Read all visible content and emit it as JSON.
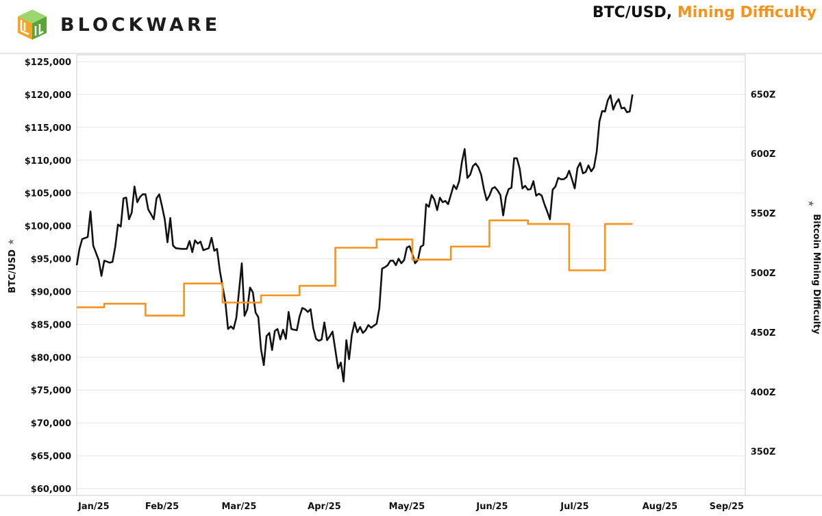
{
  "brand": {
    "name": "BLOCKWARE",
    "logo_icon": "blockware-cube-logo-icon"
  },
  "title_parts": [
    "BTC/USD, ",
    "Mining Difficulty"
  ],
  "colors": {
    "btc": "#111111",
    "difficulty": "#f7931a",
    "grid": "#e6e6e6"
  },
  "chart_data": {
    "type": "line",
    "x_ticks": [
      "Jan/25",
      "Feb/25",
      "Mar/25",
      "Apr/25",
      "May/25",
      "Jun/25",
      "Jul/25",
      "Aug/25",
      "Sep/25"
    ],
    "xlim": [
      "2025-01-01",
      "2025-09-01"
    ],
    "y_left": {
      "label": "BTC/USD",
      "ticks": [
        "$125,000",
        "$120,000",
        "$115,000",
        "$110,000",
        "$105,000",
        "$100,000",
        "$95,000",
        "$90,000",
        "$85,000",
        "$80,000",
        "$75,000",
        "$70,000",
        "$65,000",
        "$60,000"
      ],
      "ylim": [
        60000,
        125000
      ]
    },
    "y_right": {
      "label": "Bitcoin Mining Difficulty",
      "ticks": [
        "650Z",
        "600Z",
        "550Z",
        "500Z",
        "450Z",
        "400Z",
        "350Z"
      ],
      "ylim": [
        313,
        683
      ]
    },
    "grid": true,
    "series": [
      {
        "name": "BTC/USD",
        "axis": "left",
        "points": [
          [
            "2025-01-01",
            94000
          ],
          [
            "2025-01-02",
            96500
          ],
          [
            "2025-01-03",
            98000
          ],
          [
            "2025-01-05",
            98300
          ],
          [
            "2025-01-06",
            102200
          ],
          [
            "2025-01-07",
            97000
          ],
          [
            "2025-01-09",
            94800
          ],
          [
            "2025-01-10",
            92400
          ],
          [
            "2025-01-11",
            94700
          ],
          [
            "2025-01-13",
            94400
          ],
          [
            "2025-01-14",
            94500
          ],
          [
            "2025-01-15",
            96800
          ],
          [
            "2025-01-16",
            100200
          ],
          [
            "2025-01-17",
            99900
          ],
          [
            "2025-01-18",
            104200
          ],
          [
            "2025-01-19",
            104300
          ],
          [
            "2025-01-20",
            101000
          ],
          [
            "2025-01-21",
            102000
          ],
          [
            "2025-01-22",
            106000
          ],
          [
            "2025-01-23",
            103600
          ],
          [
            "2025-01-24",
            104400
          ],
          [
            "2025-01-25",
            104800
          ],
          [
            "2025-01-26",
            104800
          ],
          [
            "2025-01-27",
            102500
          ],
          [
            "2025-01-28",
            101800
          ],
          [
            "2025-01-29",
            101000
          ],
          [
            "2025-01-30",
            104200
          ],
          [
            "2025-01-31",
            104800
          ],
          [
            "2025-02-01",
            103000
          ],
          [
            "2025-02-02",
            101000
          ],
          [
            "2025-02-03",
            97500
          ],
          [
            "2025-02-04",
            101200
          ],
          [
            "2025-02-05",
            97000
          ],
          [
            "2025-02-06",
            96600
          ],
          [
            "2025-02-08",
            96500
          ],
          [
            "2025-02-10",
            96500
          ],
          [
            "2025-02-11",
            97700
          ],
          [
            "2025-02-12",
            96000
          ],
          [
            "2025-02-13",
            97800
          ],
          [
            "2025-02-14",
            97300
          ],
          [
            "2025-02-15",
            97600
          ],
          [
            "2025-02-16",
            96300
          ],
          [
            "2025-02-18",
            96600
          ],
          [
            "2025-02-19",
            98200
          ],
          [
            "2025-02-20",
            96200
          ],
          [
            "2025-02-21",
            96500
          ],
          [
            "2025-02-22",
            93200
          ],
          [
            "2025-02-23",
            90800
          ],
          [
            "2025-02-24",
            88500
          ],
          [
            "2025-02-25",
            84300
          ],
          [
            "2025-02-26",
            84700
          ],
          [
            "2025-02-27",
            84300
          ],
          [
            "2025-02-28",
            86000
          ],
          [
            "2025-03-02",
            94300
          ],
          [
            "2025-03-03",
            86300
          ],
          [
            "2025-03-04",
            87300
          ],
          [
            "2025-03-05",
            90600
          ],
          [
            "2025-03-06",
            89900
          ],
          [
            "2025-03-07",
            86800
          ],
          [
            "2025-03-08",
            86100
          ],
          [
            "2025-03-09",
            81200
          ],
          [
            "2025-03-10",
            78800
          ],
          [
            "2025-03-11",
            83200
          ],
          [
            "2025-03-12",
            83700
          ],
          [
            "2025-03-13",
            81100
          ],
          [
            "2025-03-14",
            84000
          ],
          [
            "2025-03-15",
            84300
          ],
          [
            "2025-03-16",
            82700
          ],
          [
            "2025-03-17",
            84200
          ],
          [
            "2025-03-18",
            82800
          ],
          [
            "2025-03-19",
            86900
          ],
          [
            "2025-03-20",
            84300
          ],
          [
            "2025-03-21",
            84200
          ],
          [
            "2025-03-22",
            84100
          ],
          [
            "2025-03-23",
            86200
          ],
          [
            "2025-03-24",
            87500
          ],
          [
            "2025-03-25",
            87300
          ],
          [
            "2025-03-26",
            86900
          ],
          [
            "2025-03-27",
            87300
          ],
          [
            "2025-03-28",
            84400
          ],
          [
            "2025-03-29",
            82800
          ],
          [
            "2025-03-30",
            82500
          ],
          [
            "2025-03-31",
            82700
          ],
          [
            "2025-04-01",
            85300
          ],
          [
            "2025-04-02",
            82600
          ],
          [
            "2025-04-03",
            83200
          ],
          [
            "2025-04-04",
            83900
          ],
          [
            "2025-04-06",
            78300
          ],
          [
            "2025-04-07",
            79200
          ],
          [
            "2025-04-08",
            76300
          ],
          [
            "2025-04-09",
            82600
          ],
          [
            "2025-04-10",
            79700
          ],
          [
            "2025-04-11",
            83400
          ],
          [
            "2025-04-12",
            85300
          ],
          [
            "2025-04-13",
            83800
          ],
          [
            "2025-04-14",
            84600
          ],
          [
            "2025-04-15",
            83700
          ],
          [
            "2025-04-16",
            84100
          ],
          [
            "2025-04-17",
            84900
          ],
          [
            "2025-04-18",
            84500
          ],
          [
            "2025-04-20",
            85100
          ],
          [
            "2025-04-21",
            87500
          ],
          [
            "2025-04-22",
            93500
          ],
          [
            "2025-04-23",
            93700
          ],
          [
            "2025-04-24",
            94000
          ],
          [
            "2025-04-25",
            94700
          ],
          [
            "2025-04-26",
            94700
          ],
          [
            "2025-04-27",
            94000
          ],
          [
            "2025-04-28",
            95000
          ],
          [
            "2025-04-29",
            94300
          ],
          [
            "2025-04-30",
            94800
          ],
          [
            "2025-05-01",
            96700
          ],
          [
            "2025-05-02",
            96900
          ],
          [
            "2025-05-03",
            95700
          ],
          [
            "2025-05-04",
            94300
          ],
          [
            "2025-05-05",
            94800
          ],
          [
            "2025-05-06",
            96800
          ],
          [
            "2025-05-07",
            97100
          ],
          [
            "2025-05-08",
            103300
          ],
          [
            "2025-05-09",
            102900
          ],
          [
            "2025-05-10",
            104700
          ],
          [
            "2025-05-11",
            104000
          ],
          [
            "2025-05-12",
            102400
          ],
          [
            "2025-05-13",
            104300
          ],
          [
            "2025-05-14",
            103600
          ],
          [
            "2025-05-15",
            103800
          ],
          [
            "2025-05-16",
            103300
          ],
          [
            "2025-05-18",
            106200
          ],
          [
            "2025-05-19",
            105600
          ],
          [
            "2025-05-20",
            106800
          ],
          [
            "2025-05-21",
            109700
          ],
          [
            "2025-05-22",
            111700
          ],
          [
            "2025-05-23",
            107300
          ],
          [
            "2025-05-24",
            107800
          ],
          [
            "2025-05-25",
            109100
          ],
          [
            "2025-05-26",
            109500
          ],
          [
            "2025-05-27",
            108900
          ],
          [
            "2025-05-28",
            107800
          ],
          [
            "2025-05-29",
            105600
          ],
          [
            "2025-05-30",
            103900
          ],
          [
            "2025-05-31",
            104600
          ],
          [
            "2025-06-01",
            105700
          ],
          [
            "2025-06-02",
            105900
          ],
          [
            "2025-06-03",
            105400
          ],
          [
            "2025-06-04",
            104700
          ],
          [
            "2025-06-05",
            101600
          ],
          [
            "2025-06-06",
            104400
          ],
          [
            "2025-06-07",
            105600
          ],
          [
            "2025-06-08",
            105800
          ],
          [
            "2025-06-09",
            110300
          ],
          [
            "2025-06-10",
            110300
          ],
          [
            "2025-06-11",
            108700
          ],
          [
            "2025-06-12",
            105700
          ],
          [
            "2025-06-13",
            106100
          ],
          [
            "2025-06-14",
            105500
          ],
          [
            "2025-06-15",
            105600
          ],
          [
            "2025-06-16",
            106800
          ],
          [
            "2025-06-17",
            104600
          ],
          [
            "2025-06-18",
            104900
          ],
          [
            "2025-06-19",
            104600
          ],
          [
            "2025-06-20",
            103300
          ],
          [
            "2025-06-21",
            102200
          ],
          [
            "2025-06-22",
            101000
          ],
          [
            "2025-06-23",
            105500
          ],
          [
            "2025-06-24",
            106000
          ],
          [
            "2025-06-25",
            107300
          ],
          [
            "2025-06-26",
            107100
          ],
          [
            "2025-06-27",
            107100
          ],
          [
            "2025-06-28",
            107400
          ],
          [
            "2025-06-29",
            108400
          ],
          [
            "2025-06-30",
            107100
          ],
          [
            "2025-07-01",
            105700
          ],
          [
            "2025-07-02",
            108800
          ],
          [
            "2025-07-03",
            109600
          ],
          [
            "2025-07-04",
            108000
          ],
          [
            "2025-07-05",
            108200
          ],
          [
            "2025-07-06",
            109200
          ],
          [
            "2025-07-07",
            108300
          ],
          [
            "2025-07-08",
            108900
          ],
          [
            "2025-07-09",
            111300
          ],
          [
            "2025-07-10",
            115900
          ],
          [
            "2025-07-11",
            117500
          ],
          [
            "2025-07-12",
            117400
          ],
          [
            "2025-07-13",
            119100
          ],
          [
            "2025-07-14",
            119900
          ],
          [
            "2025-07-15",
            117700
          ],
          [
            "2025-07-16",
            118700
          ],
          [
            "2025-07-17",
            119300
          ],
          [
            "2025-07-18",
            117900
          ],
          [
            "2025-07-19",
            118000
          ],
          [
            "2025-07-20",
            117300
          ],
          [
            "2025-07-21",
            117400
          ],
          [
            "2025-07-22",
            120000
          ]
        ]
      },
      {
        "name": "Mining Difficulty",
        "axis": "right",
        "step": true,
        "points": [
          [
            "2025-01-01",
            471
          ],
          [
            "2025-01-11",
            474
          ],
          [
            "2025-01-26",
            464
          ],
          [
            "2025-02-09",
            491
          ],
          [
            "2025-02-23",
            475
          ],
          [
            "2025-03-09",
            481
          ],
          [
            "2025-03-23",
            489
          ],
          [
            "2025-04-05",
            521
          ],
          [
            "2025-04-20",
            528
          ],
          [
            "2025-05-03",
            511
          ],
          [
            "2025-05-17",
            522
          ],
          [
            "2025-05-31",
            544
          ],
          [
            "2025-06-14",
            541
          ],
          [
            "2025-06-29",
            502
          ],
          [
            "2025-07-12",
            541
          ],
          [
            "2025-07-22",
            541
          ]
        ]
      }
    ]
  }
}
